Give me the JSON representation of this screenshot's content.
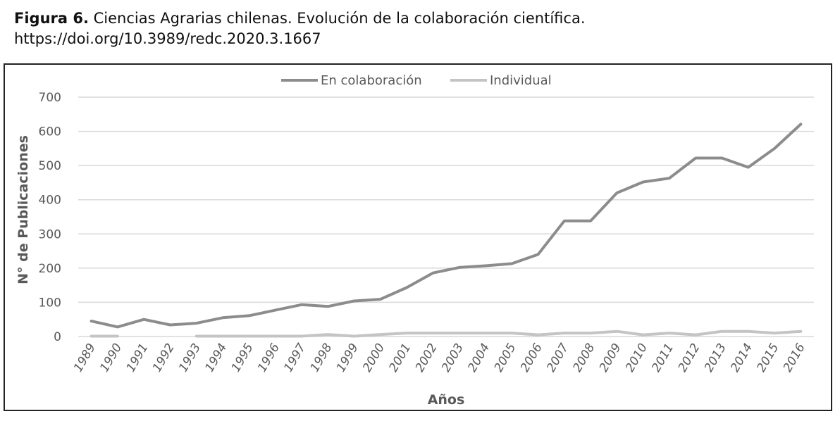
{
  "caption": {
    "label": "Figura 6.",
    "text": " Ciencias Agrarias chilenas. Evolución de la colaboración científica.",
    "url": "https://doi.org/10.3989/redc.2020.3.1667"
  },
  "chart_data": {
    "type": "line",
    "title": "",
    "xlabel": "Años",
    "ylabel": "N° de Publicaciones",
    "ylim": [
      0,
      700
    ],
    "yticks": [
      "0",
      "100",
      "200",
      "300",
      "400",
      "500",
      "600",
      "700"
    ],
    "categories": [
      "1989",
      "1990",
      "1991",
      "1992",
      "1993",
      "1994",
      "1995",
      "1996",
      "1997",
      "1998",
      "1999",
      "2000",
      "2001",
      "2002",
      "2003",
      "2004",
      "2005",
      "2006",
      "2007",
      "2008",
      "2009",
      "2010",
      "2011",
      "2012",
      "2013",
      "2014",
      "2015",
      "2016"
    ],
    "grid": true,
    "legend_position": "top-center",
    "series": [
      {
        "name": "En colaboración",
        "color": "#8c8c8c",
        "values": [
          45,
          28,
          50,
          34,
          39,
          55,
          61,
          77,
          93,
          88,
          104,
          109,
          143,
          186,
          202,
          207,
          213,
          240,
          338,
          338,
          420,
          452,
          463,
          522,
          522,
          495,
          550,
          621
        ]
      },
      {
        "name": "Individual",
        "color": "#c4c4c4",
        "values": [
          1,
          1,
          null,
          null,
          1,
          1,
          1,
          1,
          1,
          6,
          1,
          6,
          10,
          10,
          10,
          10,
          10,
          5,
          10,
          10,
          15,
          5,
          10,
          5,
          15,
          15,
          10,
          15
        ]
      }
    ]
  }
}
